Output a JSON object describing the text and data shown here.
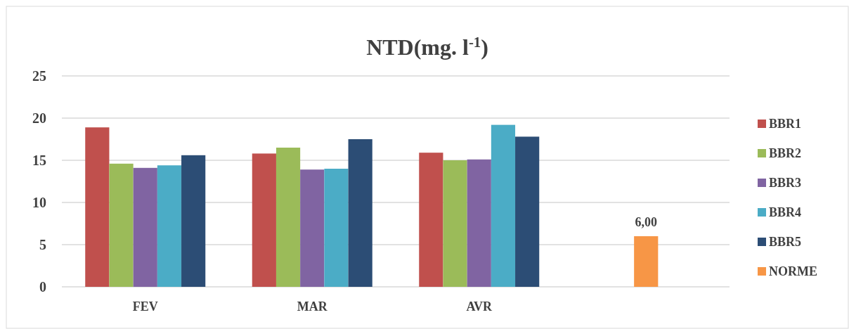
{
  "chart_data": {
    "type": "bar",
    "title": "NTD(mg. l$^{-1}$)",
    "categories": [
      "FEV",
      "MAR",
      "AVR",
      null
    ],
    "series": [
      {
        "name": "BBR1",
        "color": "#c0504d",
        "values": [
          18.9,
          15.8,
          15.9,
          null
        ]
      },
      {
        "name": "BBR2",
        "color": "#9bbb59",
        "values": [
          14.6,
          16.5,
          15.0,
          null
        ]
      },
      {
        "name": "BBR3",
        "color": "#8064a2",
        "values": [
          14.1,
          13.9,
          15.1,
          null
        ]
      },
      {
        "name": "BBR4",
        "color": "#4bacc6",
        "values": [
          14.4,
          14.0,
          19.2,
          null
        ]
      },
      {
        "name": "BBR5",
        "color": "#2c4d75",
        "values": [
          15.6,
          17.5,
          17.8,
          null
        ]
      },
      {
        "name": "NORME",
        "color": "#f79646",
        "values": [
          null,
          null,
          null,
          6.0
        ],
        "value_labels": [
          null,
          null,
          null,
          "6,00"
        ]
      }
    ],
    "ylim": [
      0,
      25
    ],
    "yticks": [
      0,
      5,
      10,
      15,
      20,
      25
    ],
    "grid": "y",
    "legend": "right"
  }
}
